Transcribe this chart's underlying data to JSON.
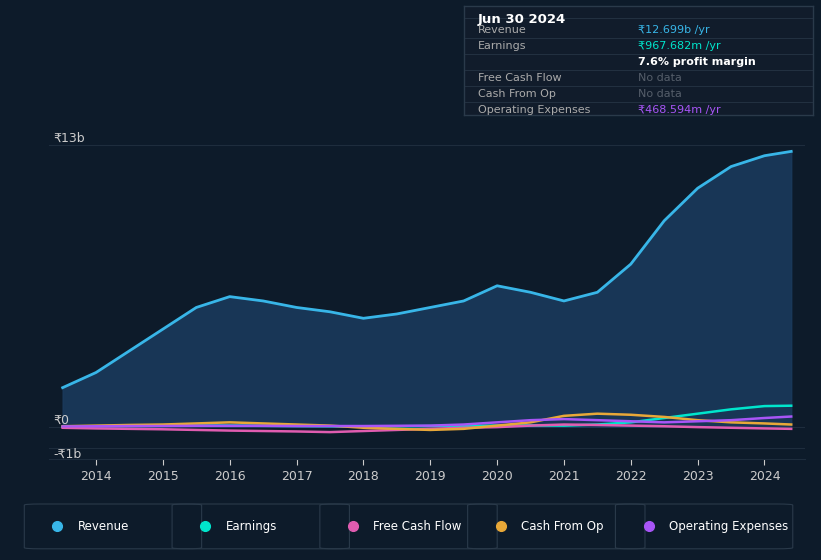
{
  "background_color": "#0d1b2a",
  "plot_bg_color": "#0d1b2a",
  "grid_color": "#1e2d3d",
  "text_color": "#cccccc",
  "years": [
    2013.5,
    2014,
    2014.5,
    2015,
    2015.5,
    2016,
    2016.5,
    2017,
    2017.5,
    2018,
    2018.5,
    2019,
    2019.5,
    2020,
    2020.5,
    2021,
    2021.5,
    2022,
    2022.5,
    2023,
    2023.5,
    2024,
    2024.4
  ],
  "revenue": [
    1800000000,
    2500000000,
    3500000000,
    4500000000,
    5500000000,
    6000000000,
    5800000000,
    5500000000,
    5300000000,
    5000000000,
    5200000000,
    5500000000,
    5800000000,
    6500000000,
    6200000000,
    5800000000,
    6200000000,
    7500000000,
    9500000000,
    11000000000,
    12000000000,
    12500000000,
    12699000000
  ],
  "earnings": [
    0,
    20000000,
    30000000,
    40000000,
    50000000,
    50000000,
    40000000,
    30000000,
    20000000,
    10000000,
    20000000,
    30000000,
    40000000,
    50000000,
    60000000,
    50000000,
    100000000,
    200000000,
    400000000,
    600000000,
    800000000,
    950000000,
    967682000
  ],
  "free_cash_flow": [
    -50000000,
    -80000000,
    -100000000,
    -120000000,
    -150000000,
    -180000000,
    -200000000,
    -220000000,
    -250000000,
    -200000000,
    -150000000,
    -100000000,
    -50000000,
    -20000000,
    50000000,
    100000000,
    80000000,
    50000000,
    20000000,
    -20000000,
    -50000000,
    -80000000,
    -100000000
  ],
  "cash_from_op": [
    20000000,
    50000000,
    80000000,
    100000000,
    150000000,
    200000000,
    150000000,
    100000000,
    50000000,
    -50000000,
    -100000000,
    -150000000,
    -100000000,
    50000000,
    200000000,
    500000000,
    600000000,
    550000000,
    450000000,
    300000000,
    200000000,
    150000000,
    100000000
  ],
  "operating_expenses": [
    10000000,
    20000000,
    30000000,
    30000000,
    40000000,
    40000000,
    40000000,
    30000000,
    30000000,
    30000000,
    40000000,
    50000000,
    100000000,
    200000000,
    300000000,
    350000000,
    300000000,
    250000000,
    200000000,
    250000000,
    300000000,
    400000000,
    468594000
  ],
  "ylim_min": -1500000000,
  "ylim_max": 14000000000,
  "xlim_min": 2013.3,
  "xlim_max": 2024.6,
  "revenue_color": "#38b6e8",
  "revenue_fill": "#1a3a5c",
  "earnings_color": "#00e5cc",
  "free_cash_flow_color": "#e05cb0",
  "cash_from_op_color": "#e8a838",
  "operating_expenses_color": "#a855f7",
  "xtick_years": [
    2014,
    2015,
    2016,
    2017,
    2018,
    2019,
    2020,
    2021,
    2022,
    2023,
    2024
  ],
  "y_label_13b": "₹13b",
  "y_label_0": "₹0",
  "y_label_neg1b": "-₹1b",
  "y_val_13b": 13000000000,
  "y_val_0": 0,
  "y_val_neg1b": -1000000000,
  "info_box_title": "Jun 30 2024",
  "info_box_bg": "#111c2b",
  "info_box_border": "#2a3a4a",
  "info_rows": [
    {
      "label": "Revenue",
      "value": "₹12.699b /yr",
      "value_color": "#38b6e8",
      "bold": false
    },
    {
      "label": "Earnings",
      "value": "₹967.682m /yr",
      "value_color": "#00e5cc",
      "bold": false
    },
    {
      "label": "",
      "value": "7.6% profit margin",
      "value_color": "#ffffff",
      "bold": true
    },
    {
      "label": "Free Cash Flow",
      "value": "No data",
      "value_color": "#555e6a",
      "bold": false
    },
    {
      "label": "Cash From Op",
      "value": "No data",
      "value_color": "#555e6a",
      "bold": false
    },
    {
      "label": "Operating Expenses",
      "value": "₹468.594m /yr",
      "value_color": "#a855f7",
      "bold": false
    }
  ],
  "legend_items": [
    {
      "label": "Revenue",
      "color": "#38b6e8"
    },
    {
      "label": "Earnings",
      "color": "#00e5cc"
    },
    {
      "label": "Free Cash Flow",
      "color": "#e05cb0"
    },
    {
      "label": "Cash From Op",
      "color": "#e8a838"
    },
    {
      "label": "Operating Expenses",
      "color": "#a855f7"
    }
  ]
}
